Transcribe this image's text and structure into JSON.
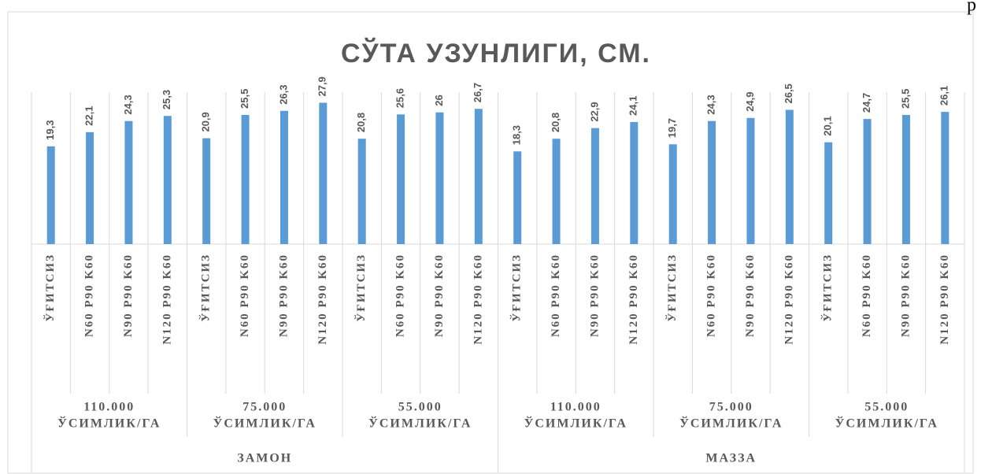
{
  "corner_text": "р",
  "chart_data": {
    "type": "bar",
    "title": "СЎТА УЗУНЛИГИ, СМ.",
    "color": "#5b9bd5",
    "categories": [
      "ЎҒИТСИЗ",
      "N60 P90 K60",
      "N90 P90 K60",
      "N120 P90 K60",
      "ЎҒИТСИЗ",
      "N60 P90 K60",
      "N90 P90 K60",
      "N120 P90 K60",
      "ЎҒИТСИЗ",
      "N60 P90 K60",
      "N90 P90 K60",
      "N120 P90 K60",
      "ЎҒИТСИЗ",
      "N60 P90 K60",
      "N90 P90 K60",
      "N120 P90 K60",
      "ЎҒИТСИЗ",
      "N60 P90 K60",
      "N90 P90 K60",
      "N120 P90 K60",
      "ЎҒИТСИЗ",
      "N60 P90 K60",
      "N90 P90 K60",
      "N120 P90 K60"
    ],
    "density_groups": [
      [
        "110.000",
        "ЎСИМЛИК/ГА"
      ],
      [
        "75.000",
        "ЎСИМЛИК/ГА"
      ],
      [
        "55.000",
        "ЎСИМЛИК/ГА"
      ],
      [
        "110.000",
        "ЎСИМЛИК/ГА"
      ],
      [
        "75.000",
        "ЎСИМЛИК/ГА"
      ],
      [
        "55.000",
        "ЎСИМЛИК/ГА"
      ]
    ],
    "variety_groups": [
      "ЗАМОН",
      "МАЗЗА"
    ],
    "values": [
      19.3,
      22.1,
      24.3,
      25.3,
      20.9,
      25.5,
      26.3,
      27.9,
      20.8,
      25.6,
      26,
      26.7,
      18.3,
      20.8,
      22.9,
      24.1,
      19.7,
      24.3,
      24.9,
      26.5,
      20.1,
      24.7,
      25.5,
      26.1
    ],
    "value_labels": [
      "19,3",
      "22,1",
      "24,3",
      "25,3",
      "20,9",
      "25,5",
      "26,3",
      "27,9",
      "20,8",
      "25,6",
      "26",
      "26,7",
      "18,3",
      "20,8",
      "22,9",
      "24,1",
      "19,7",
      "24,3",
      "24,9",
      "26,5",
      "20,1",
      "24,7",
      "25,5",
      "26,1"
    ],
    "ylim": [
      0,
      30
    ]
  }
}
